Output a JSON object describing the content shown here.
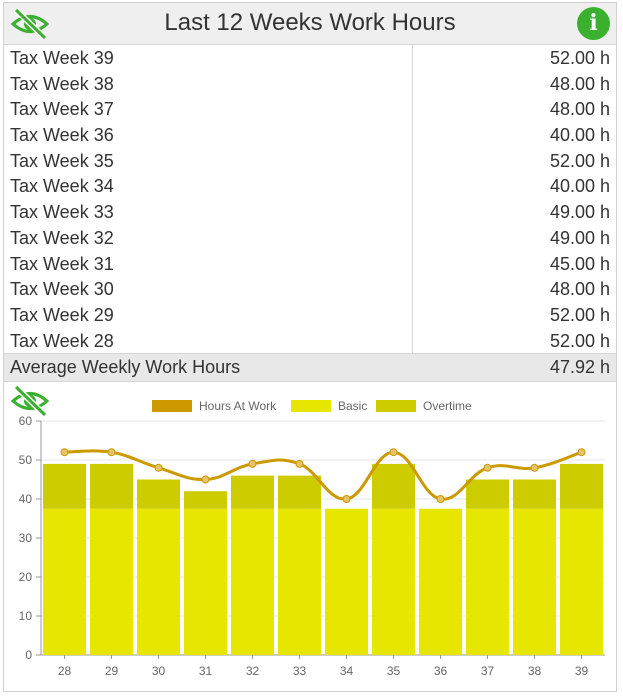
{
  "header": {
    "title": "Last 12 Weeks Work Hours",
    "left_icon": "eye-slash-icon",
    "right_icon": "info-icon",
    "info_glyph": "i",
    "colors": {
      "eye": "#3bb02e",
      "info": "#3bb02e"
    }
  },
  "table": {
    "rows": [
      {
        "label": "Tax Week 39",
        "value": "52.00 h"
      },
      {
        "label": "Tax Week 38",
        "value": "48.00 h"
      },
      {
        "label": "Tax Week 37",
        "value": "48.00 h"
      },
      {
        "label": "Tax Week 36",
        "value": "40.00 h"
      },
      {
        "label": "Tax Week 35",
        "value": "52.00 h"
      },
      {
        "label": "Tax Week 34",
        "value": "40.00 h"
      },
      {
        "label": "Tax Week 33",
        "value": "49.00 h"
      },
      {
        "label": "Tax Week 32",
        "value": "49.00 h"
      },
      {
        "label": "Tax Week 31",
        "value": "45.00 h"
      },
      {
        "label": "Tax Week 30",
        "value": "48.00 h"
      },
      {
        "label": "Tax Week 29",
        "value": "52.00 h"
      },
      {
        "label": "Tax Week 28",
        "value": "52.00 h"
      }
    ],
    "average": {
      "label": "Average Weekly Work Hours",
      "value": "47.92 h"
    }
  },
  "chart_icon": "eye-slash-icon",
  "chart_data": {
    "type": "bar",
    "stacked": true,
    "categories": [
      "28",
      "29",
      "30",
      "31",
      "32",
      "33",
      "34",
      "35",
      "36",
      "37",
      "38",
      "39"
    ],
    "series": [
      {
        "name": "Basic",
        "type": "bar",
        "color": "#e6e600",
        "values": [
          37.5,
          37.5,
          37.5,
          37.5,
          37.5,
          37.5,
          37.5,
          37.5,
          37.5,
          37.5,
          37.5,
          37.5
        ]
      },
      {
        "name": "Overtime",
        "type": "bar",
        "color": "#cccc00",
        "values": [
          11.5,
          11.5,
          7.5,
          4.5,
          8.5,
          8.5,
          0,
          11.5,
          0,
          7.5,
          7.5,
          11.5
        ]
      },
      {
        "name": "Hours At Work",
        "type": "line",
        "color": "#cc9900",
        "values": [
          52,
          52,
          48,
          45,
          49,
          49,
          40,
          52,
          40,
          48,
          48,
          52
        ]
      }
    ],
    "legend_order": [
      "Hours At Work",
      "Basic",
      "Overtime"
    ],
    "legend_position": "top",
    "ylim": [
      0,
      60
    ],
    "yticks": [
      0,
      10,
      20,
      30,
      40,
      50,
      60
    ],
    "grid": true
  }
}
